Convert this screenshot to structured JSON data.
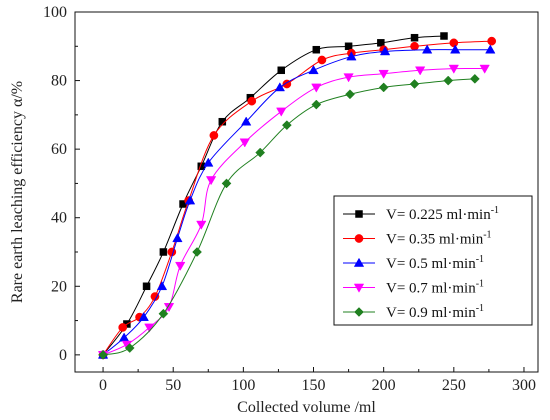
{
  "chart_data": {
    "type": "line",
    "xlabel": "Collected volume /ml",
    "ylabel": "Rare earth leaching efficiency α/%",
    "xlim": [
      -20,
      310
    ],
    "ylim": [
      -5,
      100
    ],
    "xticks": [
      0,
      50,
      100,
      150,
      200,
      250,
      300
    ],
    "yticks": [
      0,
      20,
      40,
      60,
      80,
      100
    ],
    "grid": false,
    "legend_position": "right-middle",
    "series": [
      {
        "name": "V= 0.225 ml·min-1",
        "label_main": "V= 0.225 ml·min",
        "label_sup": "-1",
        "color": "#000000",
        "marker": "square",
        "x": [
          0,
          17,
          31,
          43,
          57,
          70,
          85,
          105,
          127,
          152,
          175,
          198,
          222,
          243
        ],
        "y": [
          0,
          9,
          20,
          30,
          44,
          55,
          68,
          75,
          83,
          89,
          90,
          91,
          92.5,
          93
        ]
      },
      {
        "name": "V= 0.35 ml·min-1",
        "label_main": "V= 0.35 ml·min",
        "label_sup": "-1",
        "color": "#ff0000",
        "marker": "circle",
        "x": [
          0,
          14,
          26,
          37,
          49,
          61,
          79,
          106,
          131,
          156,
          177,
          200,
          222,
          250,
          277
        ],
        "y": [
          0,
          8,
          11,
          17,
          30,
          45,
          64,
          74,
          79,
          86,
          88,
          89,
          90,
          91,
          91.5
        ]
      },
      {
        "name": "V= 0.5 ml·min-1",
        "label_main": "V= 0.5 ml·min",
        "label_sup": "-1",
        "color": "#0000ff",
        "marker": "triangle-up",
        "x": [
          0,
          15,
          29,
          42,
          53,
          62,
          75,
          102,
          126,
          150,
          177,
          201,
          231,
          251,
          276
        ],
        "y": [
          0,
          5,
          11,
          20,
          34,
          45,
          56,
          68,
          78,
          83,
          87,
          88.5,
          89,
          89,
          89
        ]
      },
      {
        "name": "V= 0.7 ml·min-1",
        "label_main": "V= 0.7 ml·min",
        "label_sup": "-1",
        "color": "#ff00ff",
        "marker": "triangle-down",
        "x": [
          0,
          17,
          33,
          47,
          55,
          70,
          77,
          101,
          127,
          152,
          175,
          200,
          226,
          250,
          272
        ],
        "y": [
          0,
          3,
          8,
          14,
          26,
          38,
          51,
          62,
          71,
          78,
          81,
          82,
          83,
          83.5,
          83.5
        ]
      },
      {
        "name": "V= 0.9 ml·min-1",
        "label_main": "V= 0.9 ml·min",
        "label_sup": "-1",
        "color": "#208020",
        "marker": "diamond",
        "x": [
          0,
          19,
          43,
          67,
          88,
          112,
          131,
          152,
          176,
          200,
          222,
          246,
          265
        ],
        "y": [
          0,
          2,
          12,
          30,
          50,
          59,
          67,
          73,
          76,
          78,
          79,
          80,
          80.5
        ]
      }
    ]
  }
}
